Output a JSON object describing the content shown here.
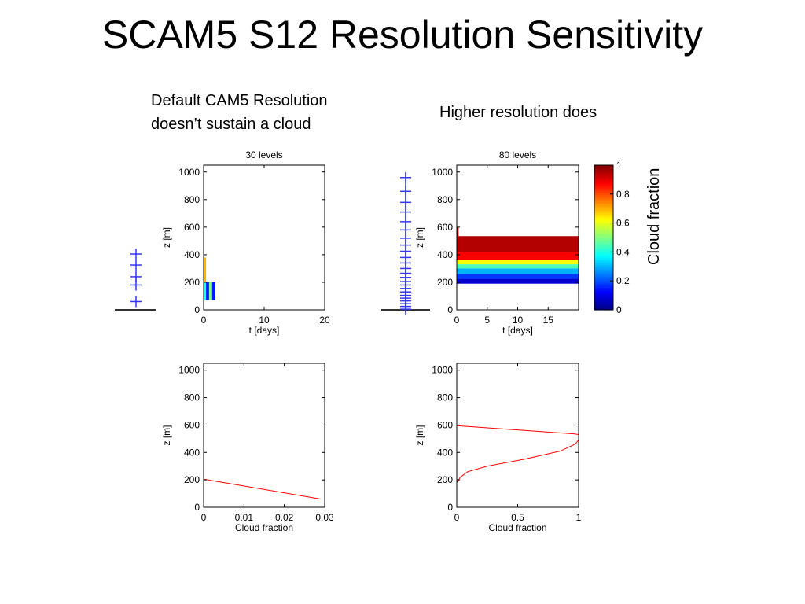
{
  "slide": {
    "title": "SCAM5 S12 Resolution Sensitivity",
    "caption_left_line1": "Default CAM5 Resolution",
    "caption_left_line2": "doesn’t sustain a cloud",
    "caption_right": "Higher resolution does",
    "colorbar_label": "Cloud fraction"
  },
  "colors": {
    "level_marker": "#3333ff",
    "profile_line": "#ff0000"
  },
  "level_markers": {
    "coarse_z": [
      60,
      180,
      240,
      325,
      405
    ],
    "fine_z": [
      5,
      25,
      45,
      65,
      85,
      105,
      130,
      155,
      180,
      205,
      235,
      265,
      300,
      340,
      380,
      425,
      470,
      520,
      580,
      640,
      710,
      780,
      860,
      960
    ]
  },
  "colorbar": {
    "ticks": [
      0,
      0.2,
      0.4,
      0.6,
      0.8,
      1
    ],
    "tick_labels": [
      "0",
      "0.2",
      "0.4",
      "0.6",
      "0.8",
      "1"
    ],
    "colormap": "jet",
    "range": [
      0,
      1
    ]
  },
  "chart_data": [
    {
      "type": "heatmap",
      "title": "30 levels",
      "xlabel": "t [days]",
      "ylabel": "z [m]",
      "xlim": [
        0,
        20
      ],
      "ylim": [
        0,
        1050
      ],
      "xticks": [
        0,
        10,
        20
      ],
      "xtick_labels": [
        "0",
        "10",
        "20"
      ],
      "yticks": [
        0,
        200,
        400,
        600,
        800,
        1000
      ],
      "ytick_labels": [
        "0",
        "200",
        "400",
        "600",
        "800",
        "1000"
      ],
      "cells": [
        {
          "t0": 0,
          "t1": 0.4,
          "z0": 200,
          "z1": 380,
          "value": 0.7
        },
        {
          "t0": 0,
          "t1": 0.4,
          "z0": 70,
          "z1": 200,
          "value": 0.4
        },
        {
          "t0": 0.4,
          "t1": 0.9,
          "z0": 70,
          "z1": 200,
          "value": 0.15
        },
        {
          "t0": 0.9,
          "t1": 1.4,
          "z0": 70,
          "z1": 200,
          "value": 0.5
        },
        {
          "t0": 1.4,
          "t1": 1.9,
          "z0": 70,
          "z1": 200,
          "value": 0.15
        }
      ]
    },
    {
      "type": "heatmap",
      "title": "80 levels",
      "xlabel": "t [days]",
      "ylabel": "z [m]",
      "xlim": [
        0,
        20
      ],
      "ylim": [
        0,
        1050
      ],
      "xticks": [
        0,
        5,
        10,
        15
      ],
      "xtick_labels": [
        "0",
        "5",
        "10",
        "15"
      ],
      "yticks": [
        0,
        200,
        400,
        600,
        800,
        1000
      ],
      "ytick_labels": [
        "0",
        "200",
        "400",
        "600",
        "800",
        "1000"
      ],
      "cells": [
        {
          "t0": 0,
          "t1": 20,
          "z0": 420,
          "z1": 535,
          "value": 0.95
        },
        {
          "t0": 0,
          "t1": 20,
          "z0": 365,
          "z1": 420,
          "value": 0.88
        },
        {
          "t0": 0,
          "t1": 20,
          "z0": 330,
          "z1": 365,
          "value": 0.62
        },
        {
          "t0": 0,
          "t1": 20,
          "z0": 300,
          "z1": 330,
          "value": 0.45
        },
        {
          "t0": 0,
          "t1": 20,
          "z0": 260,
          "z1": 300,
          "value": 0.3
        },
        {
          "t0": 0,
          "t1": 20,
          "z0": 225,
          "z1": 260,
          "value": 0.18
        },
        {
          "t0": 0,
          "t1": 20,
          "z0": 190,
          "z1": 225,
          "value": 0.08
        },
        {
          "t0": 0,
          "t1": 0.3,
          "z0": 535,
          "z1": 600,
          "value": 0.95
        }
      ]
    },
    {
      "type": "line",
      "xlabel": "Cloud fraction",
      "ylabel": "z [m]",
      "xlim": [
        0,
        0.03
      ],
      "ylim": [
        0,
        1050
      ],
      "xticks": [
        0,
        0.01,
        0.02,
        0.03
      ],
      "xtick_labels": [
        "0",
        "0.01",
        "0.02",
        "0.03"
      ],
      "yticks": [
        0,
        200,
        400,
        600,
        800,
        1000
      ],
      "ytick_labels": [
        "0",
        "200",
        "400",
        "600",
        "800",
        "1000"
      ],
      "series": [
        {
          "x": [
            0,
            0.029
          ],
          "y": [
            205,
            60
          ]
        }
      ]
    },
    {
      "type": "line",
      "xlabel": "Cloud fraction",
      "ylabel": "z [m]",
      "xlim": [
        0,
        1
      ],
      "ylim": [
        0,
        1050
      ],
      "xticks": [
        0,
        0.5,
        1
      ],
      "xtick_labels": [
        "0",
        "0.5",
        "1"
      ],
      "yticks": [
        0,
        200,
        400,
        600,
        800,
        1000
      ],
      "ytick_labels": [
        "0",
        "200",
        "400",
        "600",
        "800",
        "1000"
      ],
      "series": [
        {
          "x": [
            0,
            0.03,
            0.09,
            0.25,
            0.55,
            0.85,
            0.97,
            1.0,
            1.0,
            0.97,
            0.0
          ],
          "y": [
            180,
            220,
            260,
            300,
            350,
            410,
            460,
            490,
            530,
            535,
            595
          ]
        }
      ]
    }
  ]
}
